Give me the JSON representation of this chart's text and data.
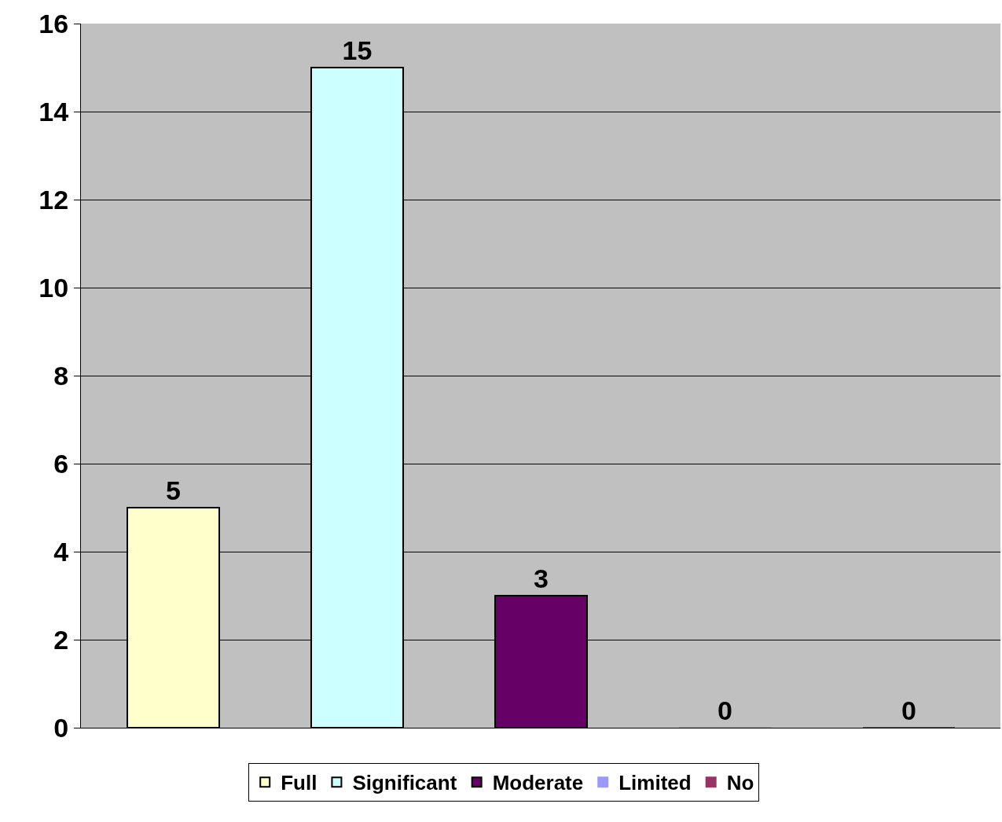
{
  "chart_data": {
    "type": "bar",
    "categories": [
      null,
      null,
      null,
      null,
      null
    ],
    "series": [
      {
        "name": "Full",
        "color": "#ffffcc",
        "values": [
          5,
          null,
          null,
          null,
          null
        ]
      },
      {
        "name": "Significant",
        "color": "#ccffff",
        "values": [
          null,
          15,
          null,
          null,
          null
        ]
      },
      {
        "name": "Moderate",
        "color": "#660066",
        "values": [
          null,
          null,
          3,
          null,
          null
        ]
      },
      {
        "name": "Limited",
        "color": "#9999ff",
        "values": [
          null,
          null,
          null,
          0,
          null
        ]
      },
      {
        "name": "No",
        "color": "#993366",
        "values": [
          null,
          null,
          null,
          null,
          0
        ]
      }
    ],
    "ylim": [
      0,
      16
    ],
    "yticks": [
      0,
      2,
      4,
      6,
      8,
      10,
      12,
      14,
      16
    ],
    "grid": "y",
    "legend": "bottom",
    "data_labels": true,
    "tick_labels": "y"
  }
}
